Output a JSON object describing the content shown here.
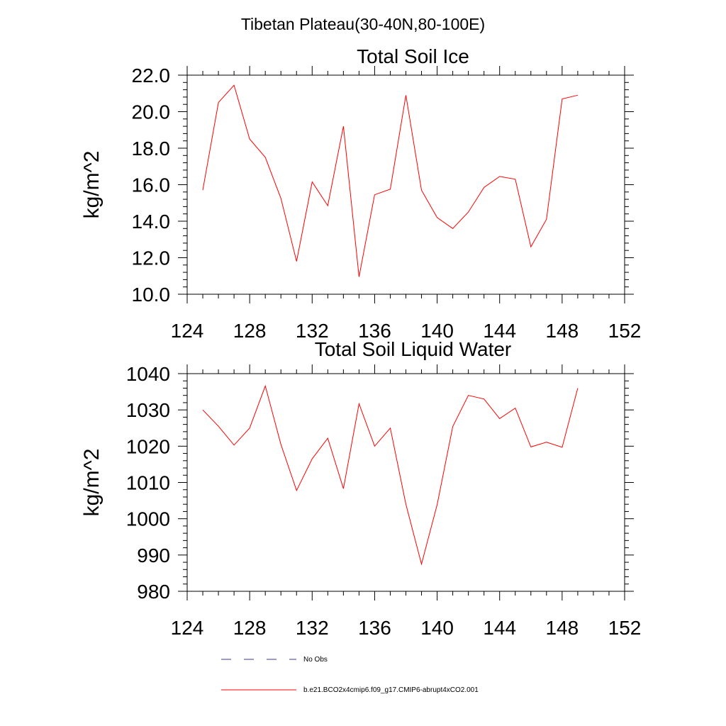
{
  "figure": {
    "suptitle": "Tibetan Plateau(30-40N,80-100E)"
  },
  "chart_data": [
    {
      "type": "line",
      "title": "Total Soil Ice",
      "xlabel": "",
      "ylabel": "kg/m^2",
      "xlim": [
        124,
        152
      ],
      "ylim": [
        10,
        22
      ],
      "xticks": [
        124,
        128,
        132,
        136,
        140,
        144,
        148,
        152
      ],
      "xtick_labels": [
        "124",
        "128",
        "132",
        "136",
        "140",
        "144",
        "148",
        "152"
      ],
      "yticks": [
        10,
        12,
        14,
        16,
        18,
        20,
        22
      ],
      "ytick_labels": [
        "10.0",
        "12.0",
        "14.0",
        "16.0",
        "18.0",
        "20.0",
        "22.0"
      ],
      "x": [
        125,
        126,
        127,
        128,
        129,
        130,
        131,
        132,
        133,
        134,
        135,
        136,
        137,
        138,
        139,
        140,
        141,
        142,
        143,
        144,
        145,
        146,
        147,
        148,
        149
      ],
      "series": [
        {
          "name": "b.e21.BCO2x4cmip6.f09_g17.CMIP6-abrupt4xCO2.001",
          "color": "#ff0000",
          "values": [
            15.7,
            20.5,
            21.45,
            18.5,
            17.5,
            15.25,
            11.8,
            16.15,
            14.85,
            19.2,
            10.95,
            15.45,
            15.75,
            20.9,
            15.7,
            14.2,
            13.6,
            14.5,
            15.85,
            16.45,
            16.3,
            12.6,
            14.1,
            20.7,
            20.9
          ]
        }
      ]
    },
    {
      "type": "line",
      "title": "Total Soil Liquid Water",
      "xlabel": "",
      "ylabel": "kg/m^2",
      "xlim": [
        124,
        152
      ],
      "ylim": [
        980,
        1040
      ],
      "xticks": [
        124,
        128,
        132,
        136,
        140,
        144,
        148,
        152
      ],
      "xtick_labels": [
        "124",
        "128",
        "132",
        "136",
        "140",
        "144",
        "148",
        "152"
      ],
      "yticks": [
        980,
        990,
        1000,
        1010,
        1020,
        1030,
        1040
      ],
      "ytick_labels": [
        "980",
        "990",
        "1000",
        "1010",
        "1020",
        "1030",
        "1040"
      ],
      "x": [
        125,
        126,
        127,
        128,
        129,
        130,
        131,
        132,
        133,
        134,
        135,
        136,
        137,
        138,
        139,
        140,
        141,
        142,
        143,
        144,
        145,
        146,
        147,
        148,
        149
      ],
      "series": [
        {
          "name": "b.e21.BCO2x4cmip6.f09_g17.CMIP6-abrupt4xCO2.001",
          "color": "#ff0000",
          "values": [
            1030,
            1025.5,
            1020.3,
            1025,
            1036.6,
            1020.5,
            1007.8,
            1016.5,
            1022.2,
            1008.3,
            1031.7,
            1020,
            1025,
            1004,
            987.5,
            1003.9,
            1025.4,
            1034,
            1033,
            1027.6,
            1030.5,
            1019.8,
            1021.1,
            1019.7,
            1036
          ]
        }
      ]
    }
  ],
  "legend": {
    "placement": "bottom-center",
    "items": [
      {
        "label": "No Obs",
        "color": "#3a3a8c",
        "style": "dashed"
      },
      {
        "label": "b.e21.BCO2x4cmip6.f09_g17.CMIP6-abrupt4xCO2.001",
        "color": "#ff0000",
        "style": "solid"
      }
    ]
  }
}
